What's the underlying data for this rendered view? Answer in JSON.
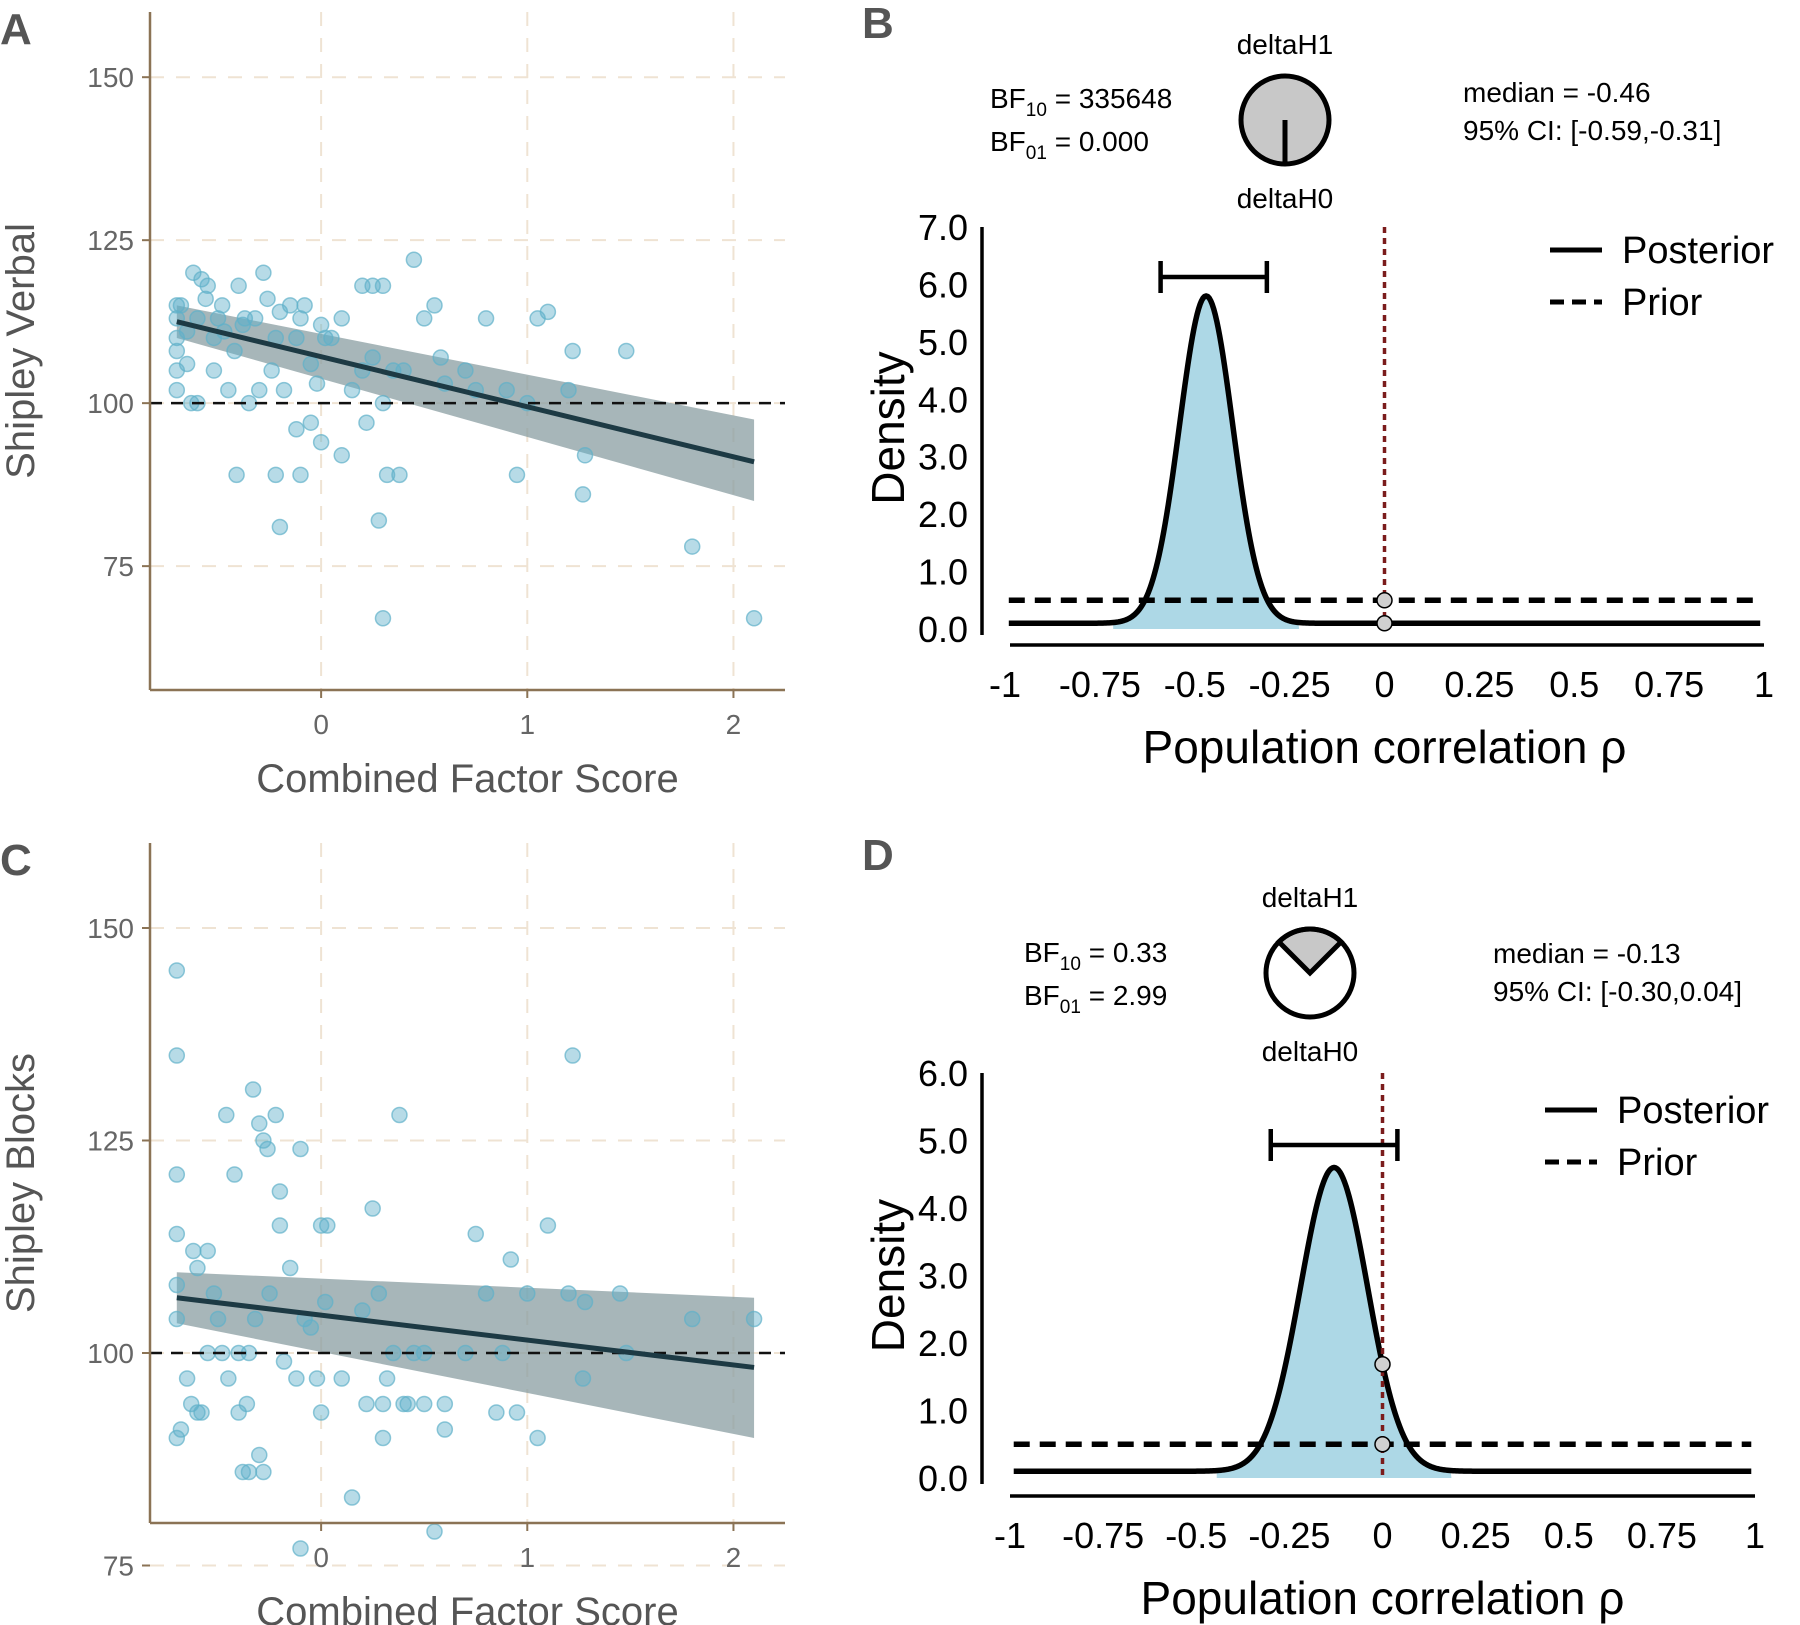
{
  "colors": {
    "point": "#5fb0c9",
    "band": "#8a9ea2",
    "fit": "#1d3a44",
    "axis": "#8b7355",
    "grid": "#efe3d3",
    "posterior_fill": "#add8e6",
    "h0_line": "#7b1c1c",
    "pie_fill": "#c8c8c8"
  },
  "chart_data": [
    {
      "panel": "A",
      "type": "scatter",
      "xlabel": "Combined Factor Score",
      "ylabel": "Shipley Verbal",
      "xlim": [
        -0.83,
        2.25
      ],
      "ylim": [
        56,
        160
      ],
      "x_ticks": [
        "0",
        "1",
        "2"
      ],
      "y_ticks": [
        "75",
        "100",
        "125",
        "150"
      ],
      "reference_line_y": 100,
      "fit": {
        "x": [
          -0.7,
          2.1
        ],
        "y": [
          112.5,
          91.0
        ],
        "ci_lower": [
          110.0,
          85.0
        ],
        "ci_upper": [
          115.0,
          97.5
        ]
      },
      "points": [
        [
          -0.7,
          115
        ],
        [
          -0.7,
          113
        ],
        [
          -0.7,
          110
        ],
        [
          -0.7,
          108
        ],
        [
          -0.7,
          105
        ],
        [
          -0.7,
          102
        ],
        [
          -0.68,
          115
        ],
        [
          -0.65,
          111
        ],
        [
          -0.62,
          120
        ],
        [
          -0.6,
          113
        ],
        [
          -0.58,
          119
        ],
        [
          -0.56,
          116
        ],
        [
          -0.55,
          118
        ],
        [
          -0.52,
          110
        ],
        [
          -0.5,
          113
        ],
        [
          -0.48,
          115
        ],
        [
          -0.47,
          111
        ],
        [
          -0.45,
          102
        ],
        [
          -0.42,
          108
        ],
        [
          -0.4,
          118
        ],
        [
          -0.38,
          112
        ],
        [
          -0.35,
          100
        ],
        [
          -0.32,
          113
        ],
        [
          -0.3,
          102
        ],
        [
          -0.28,
          120
        ],
        [
          -0.26,
          116
        ],
        [
          -0.24,
          105
        ],
        [
          -0.22,
          110
        ],
        [
          -0.2,
          114
        ],
        [
          -0.18,
          102
        ],
        [
          -0.15,
          115
        ],
        [
          -0.12,
          110
        ],
        [
          -0.1,
          113
        ],
        [
          -0.08,
          115
        ],
        [
          -0.05,
          106
        ],
        [
          -0.02,
          103
        ],
        [
          0.0,
          112
        ],
        [
          0.02,
          110
        ],
        [
          0.05,
          110
        ],
        [
          -0.6,
          100
        ],
        [
          -0.63,
          100
        ],
        [
          -0.41,
          89
        ],
        [
          -0.22,
          89
        ],
        [
          -0.1,
          89
        ],
        [
          -0.2,
          81
        ],
        [
          -0.12,
          96
        ],
        [
          -0.05,
          97
        ],
        [
          0.0,
          94
        ],
        [
          0.1,
          92
        ],
        [
          0.15,
          102
        ],
        [
          0.2,
          105
        ],
        [
          0.22,
          97
        ],
        [
          0.25,
          107
        ],
        [
          0.28,
          82
        ],
        [
          0.3,
          100
        ],
        [
          0.32,
          89
        ],
        [
          0.38,
          89
        ],
        [
          0.35,
          105
        ],
        [
          0.4,
          105
        ],
        [
          0.45,
          122
        ],
        [
          0.5,
          113
        ],
        [
          0.55,
          115
        ],
        [
          0.58,
          107
        ],
        [
          0.6,
          103
        ],
        [
          0.7,
          105
        ],
        [
          0.75,
          102
        ],
        [
          0.8,
          113
        ],
        [
          0.9,
          102
        ],
        [
          0.95,
          89
        ],
        [
          1.0,
          100
        ],
        [
          1.05,
          113
        ],
        [
          1.1,
          114
        ],
        [
          1.2,
          102
        ],
        [
          1.22,
          108
        ],
        [
          1.27,
          86
        ],
        [
          1.28,
          92
        ],
        [
          1.48,
          108
        ],
        [
          1.8,
          78
        ],
        [
          2.1,
          67
        ],
        [
          0.3,
          67
        ],
        [
          0.25,
          118
        ],
        [
          0.3,
          118
        ],
        [
          -0.65,
          106
        ],
        [
          -0.52,
          105
        ],
        [
          -0.37,
          113
        ],
        [
          0.1,
          113
        ],
        [
          0.2,
          118
        ]
      ]
    },
    {
      "panel": "B",
      "type": "line",
      "xlabel": "Population correlation ρ",
      "ylabel": "Density",
      "xlim": [
        -1,
        1
      ],
      "ylim": [
        0,
        7
      ],
      "x_ticks": [
        "-1",
        "-0.75",
        "-0.5",
        "-0.25",
        "0",
        "0.25",
        "0.5",
        "0.75",
        "1"
      ],
      "y_ticks": [
        "0.0",
        "1.0",
        "2.0",
        "3.0",
        "4.0",
        "5.0",
        "6.0",
        "7.0"
      ],
      "posterior": {
        "mode": -0.47,
        "sd": 0.07,
        "peak": 5.7
      },
      "prior_density": 0.5,
      "ci_bar": [
        -0.59,
        -0.31
      ],
      "legend": [
        "Posterior",
        "Prior"
      ],
      "pie": {
        "top": "deltaH1",
        "bottom": "deltaH0",
        "h1_share": 1.0
      },
      "bf_10": "335648",
      "bf_01": "0.000",
      "median_text": "median = -0.46",
      "ci_text": "95% CI: [-0.59,-0.31]"
    },
    {
      "panel": "C",
      "type": "scatter",
      "xlabel": "Combined Factor Score",
      "ylabel": "Shipley Blocks",
      "xlim": [
        -0.83,
        2.25
      ],
      "ylim": [
        80,
        160
      ],
      "x_ticks": [
        "0",
        "1",
        "2"
      ],
      "y_ticks": [
        "75",
        "100",
        "125",
        "150"
      ],
      "reference_line_y": 100,
      "fit": {
        "x": [
          -0.7,
          2.1
        ],
        "y": [
          106.5,
          98.3
        ],
        "ci_lower": [
          103.5,
          90.0
        ],
        "ci_upper": [
          109.5,
          106.5
        ]
      },
      "points": [
        [
          -0.7,
          145
        ],
        [
          -0.7,
          135
        ],
        [
          -0.7,
          121
        ],
        [
          -0.7,
          114
        ],
        [
          -0.7,
          108
        ],
        [
          -0.7,
          104
        ],
        [
          -0.68,
          91
        ],
        [
          -0.7,
          90
        ],
        [
          -0.65,
          97
        ],
        [
          -0.63,
          94
        ],
        [
          -0.6,
          93
        ],
        [
          -0.58,
          93
        ],
        [
          -0.55,
          100
        ],
        [
          -0.52,
          107
        ],
        [
          -0.5,
          104
        ],
        [
          -0.48,
          100
        ],
        [
          -0.46,
          128
        ],
        [
          -0.45,
          97
        ],
        [
          -0.42,
          121
        ],
        [
          -0.4,
          100
        ],
        [
          -0.38,
          86
        ],
        [
          -0.36,
          94
        ],
        [
          -0.35,
          100
        ],
        [
          -0.33,
          131
        ],
        [
          -0.32,
          104
        ],
        [
          -0.3,
          127
        ],
        [
          -0.28,
          125
        ],
        [
          -0.26,
          124
        ],
        [
          -0.25,
          107
        ],
        [
          -0.22,
          128
        ],
        [
          -0.2,
          119
        ],
        [
          -0.18,
          99
        ],
        [
          -0.15,
          110
        ],
        [
          -0.12,
          97
        ],
        [
          -0.1,
          124
        ],
        [
          -0.08,
          104
        ],
        [
          -0.05,
          103
        ],
        [
          -0.02,
          97
        ],
        [
          0.0,
          115
        ],
        [
          0.02,
          106
        ],
        [
          -0.6,
          110
        ],
        [
          -0.62,
          112
        ],
        [
          -0.55,
          112
        ],
        [
          -0.4,
          93
        ],
        [
          -0.35,
          86
        ],
        [
          -0.3,
          88
        ],
        [
          -0.28,
          86
        ],
        [
          -0.1,
          77
        ],
        [
          0.0,
          93
        ],
        [
          0.1,
          97
        ],
        [
          0.15,
          83
        ],
        [
          0.2,
          105
        ],
        [
          0.22,
          94
        ],
        [
          0.25,
          117
        ],
        [
          0.28,
          107
        ],
        [
          0.3,
          90
        ],
        [
          0.32,
          97
        ],
        [
          0.35,
          100
        ],
        [
          0.38,
          128
        ],
        [
          0.42,
          94
        ],
        [
          0.45,
          100
        ],
        [
          0.5,
          100
        ],
        [
          0.55,
          79
        ],
        [
          0.6,
          91
        ],
        [
          0.7,
          100
        ],
        [
          0.75,
          114
        ],
        [
          0.8,
          107
        ],
        [
          0.85,
          93
        ],
        [
          0.88,
          100
        ],
        [
          0.92,
          111
        ],
        [
          0.95,
          93
        ],
        [
          1.0,
          107
        ],
        [
          1.05,
          90
        ],
        [
          1.1,
          115
        ],
        [
          1.2,
          107
        ],
        [
          1.22,
          135
        ],
        [
          1.27,
          97
        ],
        [
          1.28,
          106
        ],
        [
          1.45,
          107
        ],
        [
          1.48,
          100
        ],
        [
          1.8,
          104
        ],
        [
          2.1,
          104
        ],
        [
          0.3,
          94
        ],
        [
          0.4,
          94
        ],
        [
          0.5,
          94
        ],
        [
          0.6,
          94
        ],
        [
          -0.2,
          115
        ],
        [
          0.03,
          115
        ]
      ]
    },
    {
      "panel": "D",
      "type": "line",
      "xlabel": "Population correlation ρ",
      "ylabel": "Density",
      "xlim": [
        -1,
        1
      ],
      "ylim": [
        0,
        6
      ],
      "x_ticks": [
        "-1",
        "-0.75",
        "-0.5",
        "-0.25",
        "0",
        "0.25",
        "0.5",
        "0.75",
        "1"
      ],
      "y_ticks": [
        "0.0",
        "1.0",
        "2.0",
        "3.0",
        "4.0",
        "5.0",
        "6.0"
      ],
      "posterior": {
        "mode": -0.13,
        "sd": 0.09,
        "peak": 4.5
      },
      "prior_density": 0.5,
      "ci_bar": [
        -0.3,
        0.04
      ],
      "legend": [
        "Posterior",
        "Prior"
      ],
      "pie": {
        "top": "deltaH1",
        "bottom": "deltaH0",
        "h1_share": 0.25
      },
      "bf_10": "0.33",
      "bf_01": "2.99",
      "median_text": "median = -0.13",
      "ci_text": "95% CI: [-0.30,0.04]"
    }
  ]
}
